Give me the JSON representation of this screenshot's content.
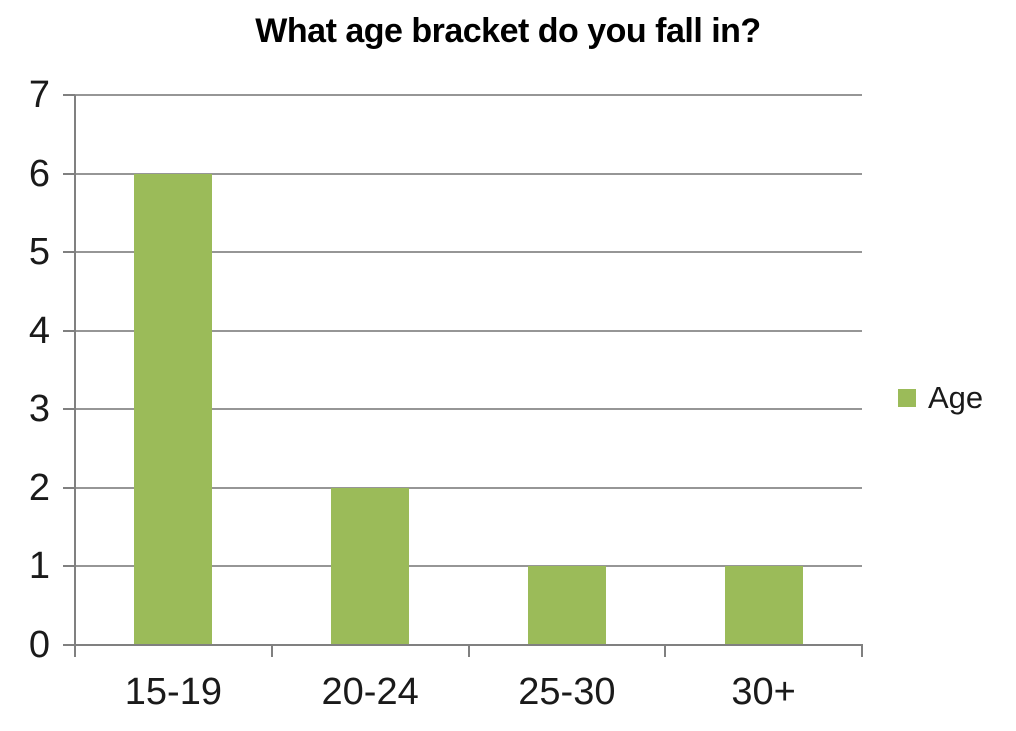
{
  "chart_data": {
    "type": "bar",
    "title": "What age bracket do you fall in?",
    "categories": [
      "15-19",
      "20-24",
      "25-30",
      "30+"
    ],
    "series": [
      {
        "name": "Age",
        "values": [
          6,
          2,
          1,
          1
        ],
        "color": "#9BBB59"
      }
    ],
    "xlabel": "",
    "ylabel": "",
    "ylim": [
      0,
      7
    ],
    "yticks": [
      0,
      1,
      2,
      3,
      4,
      5,
      6,
      7
    ],
    "grid": true,
    "legend_position": "right",
    "colors": {
      "bar": "#9BBB59",
      "gridline": "#969696",
      "axis": "#808080",
      "title": "#000000",
      "tick_label": "#1A1A1A"
    }
  }
}
